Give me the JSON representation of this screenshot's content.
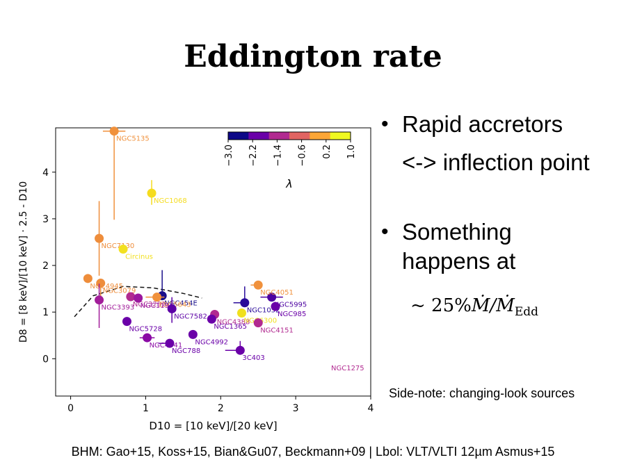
{
  "slide": {
    "title": "Eddington rate",
    "bullet1_line1": "Rapid accretors",
    "bullet1_line2": "<-> inflection point",
    "bullet2_line1": "Something",
    "bullet2_line2": "happens at",
    "math_prefix": "~ 25%",
    "math_m": "Ṁ/Ṁ",
    "math_sub": "Edd",
    "side_note": "Side-note: changing-look sources",
    "footer": "BHM: Gao+15, Koss+15, Bian&Gu07,  Beckmann+09 |  Lbol: VLT/VLTI 12µm Asmus+15",
    "bullet_glyph": "•"
  },
  "chart_data": {
    "type": "scatter",
    "xlabel": "D10 = [10 keV]/[20 keV]",
    "ylabel": "D8 = [8 keV]/[10 keV] · 2.5 - D10",
    "xlim": [
      -0.2,
      4.0
    ],
    "ylim": [
      -0.8,
      4.95
    ],
    "xticks": [
      0,
      1,
      2,
      3,
      4
    ],
    "yticks": [
      0,
      1,
      2,
      3,
      4
    ],
    "colorbar": {
      "label": "λ",
      "ticks": [
        "−3.0",
        "−2.2",
        "−1.4",
        "−0.6",
        "0.2",
        "1.0"
      ],
      "colors": [
        "#0d0887",
        "#6a00a8",
        "#b12a90",
        "#e16462",
        "#fca636",
        "#f0f921"
      ]
    },
    "trend_curve": [
      [
        0.05,
        0.9
      ],
      [
        0.3,
        1.35
      ],
      [
        0.7,
        1.55
      ],
      [
        1.1,
        1.52
      ],
      [
        1.5,
        1.4
      ],
      [
        1.75,
        1.3
      ]
    ],
    "points": [
      {
        "label": "NGC5135",
        "x": 0.58,
        "y": 4.88,
        "color": "#f0913c",
        "xerr": [
          0.15,
          0.15
        ],
        "yerr": [
          1.9,
          0.0
        ]
      },
      {
        "label": "NGC1068",
        "x": 1.08,
        "y": 3.55,
        "color": "#f5dc1e",
        "xerr": [
          0.0,
          0.0
        ],
        "yerr": [
          0.25,
          0.28
        ]
      },
      {
        "label": "NGC7130",
        "x": 0.38,
        "y": 2.58,
        "color": "#ee8d3b",
        "xerr": [
          0.0,
          0.0
        ],
        "yerr": [
          0.8,
          0.8
        ]
      },
      {
        "label": "Circinus",
        "x": 0.7,
        "y": 2.35,
        "color": "#f2e020",
        "xerr": [
          0.0,
          0.0
        ],
        "yerr": [
          0.0,
          0.0
        ]
      },
      {
        "label": "NGC4945",
        "x": 0.23,
        "y": 1.72,
        "color": "#ee8d3b",
        "xerr": [
          0.0,
          0.0
        ],
        "yerr": [
          0.0,
          0.0
        ]
      },
      {
        "label": "NGC3079",
        "x": 0.4,
        "y": 1.62,
        "color": "#ee8d3b",
        "xerr": [
          0.0,
          0.0
        ],
        "yerr": [
          0.4,
          0.0
        ]
      },
      {
        "label": "NGC454E",
        "x": 1.22,
        "y": 1.35,
        "color": "#1a0f8a",
        "xerr": [
          0.0,
          0.0
        ],
        "yerr": [
          0.0,
          0.55
        ]
      },
      {
        "label": "NGC3281",
        "x": 0.8,
        "y": 1.33,
        "color": "#b12a90",
        "xerr": [
          0.0,
          0.0
        ],
        "yerr": [
          0.0,
          0.0
        ]
      },
      {
        "label": "ESO5643",
        "x": 1.15,
        "y": 1.32,
        "color": "#f0913c",
        "xerr": [
          0.15,
          0.1
        ],
        "yerr": [
          0.0,
          0.0
        ]
      },
      {
        "label": "NGC1194",
        "x": 0.9,
        "y": 1.3,
        "color": "#9b179e",
        "xerr": [
          0.0,
          0.0
        ],
        "yerr": [
          0.0,
          0.0
        ]
      },
      {
        "label": "NGC3393",
        "x": 0.38,
        "y": 1.26,
        "color": "#a21d9a",
        "xerr": [
          0.0,
          0.0
        ],
        "yerr": [
          0.6,
          0.35
        ]
      },
      {
        "label": "NGC7582",
        "x": 1.35,
        "y": 1.07,
        "color": "#5c01a6",
        "xerr": [
          0.0,
          0.0
        ],
        "yerr": [
          0.3,
          0.25
        ]
      },
      {
        "label": "NGC5728",
        "x": 0.75,
        "y": 0.8,
        "color": "#6a00a8",
        "xerr": [
          0.0,
          0.0
        ],
        "yerr": [
          0.0,
          0.0
        ]
      },
      {
        "label": "NGC1052",
        "x": 2.32,
        "y": 1.2,
        "color": "#2a0b9a",
        "xerr": [
          0.15,
          0.0
        ],
        "yerr": [
          0.0,
          0.35
        ]
      },
      {
        "label": "NGC5995",
        "x": 2.68,
        "y": 1.32,
        "color": "#4c02a1",
        "xerr": [
          0.15,
          0.15
        ],
        "yerr": [
          0.0,
          0.0
        ]
      },
      {
        "label": "NGC4051",
        "x": 2.5,
        "y": 1.58,
        "color": "#f0913c",
        "xerr": [
          0.1,
          0.0
        ],
        "yerr": [
          0.0,
          0.0
        ]
      },
      {
        "label": "NGC985",
        "x": 2.73,
        "y": 1.12,
        "color": "#6a00a8",
        "xerr": [
          0.0,
          0.0
        ],
        "yerr": [
          0.0,
          0.0
        ]
      },
      {
        "label": "NGC4388",
        "x": 1.92,
        "y": 0.95,
        "color": "#b12a90",
        "xerr": [
          0.0,
          0.0
        ],
        "yerr": [
          0.0,
          0.0
        ]
      },
      {
        "label": "NGC6300",
        "x": 2.28,
        "y": 0.98,
        "color": "#f0e01e",
        "xerr": [
          0.0,
          0.0
        ],
        "yerr": [
          0.0,
          0.0
        ]
      },
      {
        "label": "NGC4151",
        "x": 2.5,
        "y": 0.77,
        "color": "#b12a90",
        "xerr": [
          0.0,
          0.0
        ],
        "yerr": [
          0.0,
          0.0
        ]
      },
      {
        "label": "NGC1365",
        "x": 1.88,
        "y": 0.85,
        "color": "#6a00a8",
        "xerr": [
          0.0,
          0.0
        ],
        "yerr": [
          0.0,
          0.0
        ]
      },
      {
        "label": "NGC4941",
        "x": 1.02,
        "y": 0.45,
        "color": "#8b0aa5",
        "xerr": [
          0.1,
          0.1
        ],
        "yerr": [
          0.0,
          0.0
        ]
      },
      {
        "label": "NGC4992",
        "x": 1.63,
        "y": 0.52,
        "color": "#6a00a8",
        "xerr": [
          0.0,
          0.0
        ],
        "yerr": [
          0.0,
          0.0
        ]
      },
      {
        "label": "NGC788",
        "x": 1.32,
        "y": 0.33,
        "color": "#6a00a8",
        "xerr": [
          0.15,
          0.0
        ],
        "yerr": [
          0.0,
          0.0
        ]
      },
      {
        "label": "3C403",
        "x": 2.26,
        "y": 0.18,
        "color": "#6a00a8",
        "xerr": [
          0.2,
          0.0
        ],
        "yerr": [
          0.0,
          0.2
        ]
      },
      {
        "label": "NGC1275",
        "x": null,
        "y": null,
        "color": "#b12a90",
        "xerr": [
          0.0,
          0.0
        ],
        "yerr": [
          0.0,
          0.0
        ]
      }
    ]
  }
}
